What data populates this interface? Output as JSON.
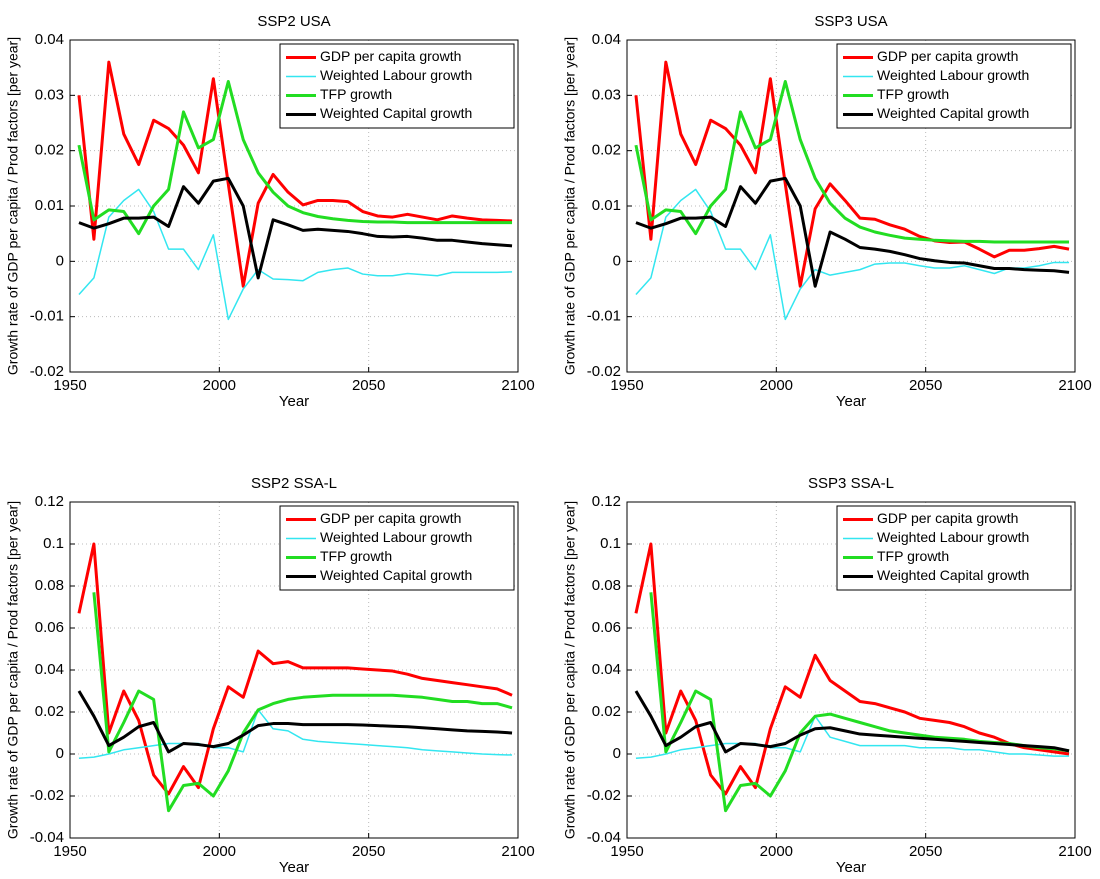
{
  "chart_data": [
    {
      "type": "line",
      "title": "SSP2  USA",
      "xlabel": "Year",
      "ylabel": "Growth rate of GDP per capita / Prod factors [per year]",
      "x": [
        1953,
        1958,
        1963,
        1968,
        1973,
        1978,
        1983,
        1988,
        1993,
        1998,
        2003,
        2008,
        2013,
        2018,
        2023,
        2028,
        2033,
        2038,
        2043,
        2048,
        2053,
        2058,
        2063,
        2068,
        2073,
        2078,
        2083,
        2088,
        2093,
        2098
      ],
      "xlim": [
        1950,
        2100
      ],
      "xticks": [
        1950,
        2000,
        2050,
        2100
      ],
      "ylim": [
        -0.02,
        0.04
      ],
      "yticks": [
        -0.02,
        -0.01,
        0,
        0.01,
        0.02,
        0.03,
        0.04
      ],
      "grid": true,
      "legend": "upper right",
      "series": [
        {
          "name": "GDP per capita growth",
          "color": "#ff0000",
          "values": [
            0.03,
            0.004,
            0.036,
            0.023,
            0.0175,
            0.0255,
            0.024,
            0.021,
            0.016,
            0.033,
            0.014,
            -0.0045,
            0.0105,
            0.0157,
            0.0125,
            0.0102,
            0.011,
            0.011,
            0.0108,
            0.009,
            0.0082,
            0.008,
            0.0085,
            0.008,
            0.0075,
            0.0082,
            0.0078,
            0.0075,
            0.0074,
            0.0073
          ]
        },
        {
          "name": "Weighted Labour growth",
          "color": "#33e6f0",
          "values": [
            -0.006,
            -0.003,
            0.008,
            0.011,
            0.013,
            0.009,
            0.0022,
            0.0022,
            -0.0015,
            0.0048,
            -0.0105,
            -0.005,
            -0.0015,
            -0.0032,
            -0.0033,
            -0.0035,
            -0.002,
            -0.0015,
            -0.0012,
            -0.0023,
            -0.0026,
            -0.0026,
            -0.0022,
            -0.0024,
            -0.0026,
            -0.002,
            -0.002,
            -0.002,
            -0.002,
            -0.0019
          ]
        },
        {
          "name": "TFP growth",
          "color": "#22dd22",
          "values": [
            0.021,
            0.0075,
            0.0093,
            0.009,
            0.005,
            0.01,
            0.013,
            0.027,
            0.0205,
            0.022,
            0.0325,
            0.022,
            0.016,
            0.0125,
            0.01,
            0.0088,
            0.0081,
            0.0077,
            0.0074,
            0.0072,
            0.0071,
            0.0071,
            0.007,
            0.007,
            0.007,
            0.007,
            0.007,
            0.007,
            0.007,
            0.007
          ]
        },
        {
          "name": "Weighted Capital growth",
          "color": "#000000",
          "values": [
            0.007,
            0.006,
            0.0068,
            0.0078,
            0.0078,
            0.008,
            0.0063,
            0.0135,
            0.0105,
            0.0145,
            0.015,
            0.01,
            -0.003,
            0.0075,
            0.0066,
            0.0056,
            0.0058,
            0.0056,
            0.0054,
            0.005,
            0.0045,
            0.0044,
            0.0045,
            0.0042,
            0.0038,
            0.0038,
            0.0035,
            0.0032,
            0.003,
            0.0028
          ]
        }
      ]
    },
    {
      "type": "line",
      "title": "SSP3  USA",
      "xlabel": "Year",
      "ylabel": "Growth rate of GDP per capita / Prod factors [per year]",
      "x": [
        1953,
        1958,
        1963,
        1968,
        1973,
        1978,
        1983,
        1988,
        1993,
        1998,
        2003,
        2008,
        2013,
        2018,
        2023,
        2028,
        2033,
        2038,
        2043,
        2048,
        2053,
        2058,
        2063,
        2068,
        2073,
        2078,
        2083,
        2088,
        2093,
        2098
      ],
      "xlim": [
        1950,
        2100
      ],
      "xticks": [
        1950,
        2000,
        2050,
        2100
      ],
      "ylim": [
        -0.02,
        0.04
      ],
      "yticks": [
        -0.02,
        -0.01,
        0,
        0.01,
        0.02,
        0.03,
        0.04
      ],
      "grid": true,
      "legend": "upper right",
      "series": [
        {
          "name": "GDP per capita growth",
          "color": "#ff0000",
          "values": [
            0.03,
            0.004,
            0.036,
            0.023,
            0.0175,
            0.0255,
            0.024,
            0.021,
            0.016,
            0.033,
            0.014,
            -0.0045,
            0.0095,
            0.014,
            0.011,
            0.0078,
            0.0076,
            0.0066,
            0.0058,
            0.0045,
            0.0037,
            0.0034,
            0.0035,
            0.0022,
            0.0008,
            0.002,
            0.002,
            0.0023,
            0.0027,
            0.0022
          ]
        },
        {
          "name": "Weighted Labour growth",
          "color": "#33e6f0",
          "values": [
            -0.006,
            -0.003,
            0.008,
            0.011,
            0.013,
            0.009,
            0.0022,
            0.0022,
            -0.0015,
            0.0048,
            -0.0105,
            -0.005,
            -0.0015,
            -0.0025,
            -0.002,
            -0.0015,
            -0.0005,
            -0.0003,
            -0.0003,
            -0.0008,
            -0.0012,
            -0.0012,
            -0.0008,
            -0.0015,
            -0.0022,
            -0.0012,
            -0.0012,
            -0.0008,
            -0.0002,
            -0.0002
          ]
        },
        {
          "name": "TFP growth",
          "color": "#22dd22",
          "values": [
            0.021,
            0.0075,
            0.0093,
            0.009,
            0.005,
            0.01,
            0.013,
            0.027,
            0.0205,
            0.022,
            0.0325,
            0.022,
            0.015,
            0.0105,
            0.0078,
            0.0062,
            0.0053,
            0.0047,
            0.0042,
            0.004,
            0.0038,
            0.0037,
            0.0036,
            0.0036,
            0.0035,
            0.0035,
            0.0035,
            0.0035,
            0.0035,
            0.0035
          ]
        },
        {
          "name": "Weighted Capital growth",
          "color": "#000000",
          "values": [
            0.007,
            0.006,
            0.0068,
            0.0078,
            0.0078,
            0.008,
            0.0063,
            0.0135,
            0.0105,
            0.0145,
            0.015,
            0.01,
            -0.0045,
            0.0053,
            0.004,
            0.0025,
            0.0022,
            0.0018,
            0.0012,
            0.0005,
            0.0001,
            -0.0002,
            -0.0003,
            -0.0008,
            -0.0013,
            -0.0013,
            -0.0015,
            -0.0016,
            -0.0017,
            -0.002
          ]
        }
      ]
    },
    {
      "type": "line",
      "title": "SSP2  SSA-L",
      "xlabel": "Year",
      "ylabel": "Growth rate of GDP per capita / Prod factors [per year]",
      "x": [
        1953,
        1958,
        1963,
        1968,
        1973,
        1978,
        1983,
        1988,
        1993,
        1998,
        2003,
        2008,
        2013,
        2018,
        2023,
        2028,
        2033,
        2038,
        2043,
        2048,
        2053,
        2058,
        2063,
        2068,
        2073,
        2078,
        2083,
        2088,
        2093,
        2098
      ],
      "xlim": [
        1950,
        2100
      ],
      "xticks": [
        1950,
        2000,
        2050,
        2100
      ],
      "ylim": [
        -0.04,
        0.12
      ],
      "yticks": [
        -0.04,
        -0.02,
        0,
        0.02,
        0.04,
        0.06,
        0.08,
        0.1,
        0.12
      ],
      "grid": true,
      "legend": "upper right",
      "series": [
        {
          "name": "GDP per capita growth",
          "color": "#ff0000",
          "values": [
            0.067,
            0.1,
            0.01,
            0.03,
            0.016,
            -0.01,
            -0.019,
            -0.006,
            -0.016,
            0.012,
            0.032,
            0.027,
            0.049,
            0.043,
            0.044,
            0.041,
            0.041,
            0.041,
            0.041,
            0.0405,
            0.04,
            0.0395,
            0.038,
            0.036,
            0.035,
            0.034,
            0.033,
            0.032,
            0.031,
            0.028
          ]
        },
        {
          "name": "Weighted Labour growth",
          "color": "#33e6f0",
          "values": [
            -0.002,
            -0.0015,
            0.0,
            0.002,
            0.003,
            0.004,
            0.005,
            0.005,
            0.005,
            0.003,
            0.003,
            0.001,
            0.021,
            0.012,
            0.011,
            0.007,
            0.006,
            0.0055,
            0.005,
            0.0045,
            0.004,
            0.0035,
            0.003,
            0.002,
            0.0015,
            0.001,
            0.0005,
            0.0,
            -0.0003,
            -0.0005
          ]
        },
        {
          "name": "TFP growth",
          "color": "#22dd22",
          "values": [
            null,
            0.077,
            0.001,
            0.015,
            0.03,
            0.026,
            -0.027,
            -0.015,
            -0.014,
            -0.02,
            -0.008,
            0.01,
            0.021,
            0.024,
            0.026,
            0.027,
            0.0275,
            0.028,
            0.028,
            0.028,
            0.028,
            0.028,
            0.0275,
            0.027,
            0.026,
            0.025,
            0.025,
            0.024,
            0.024,
            0.022
          ]
        },
        {
          "name": "Weighted Capital growth",
          "color": "#000000",
          "values": [
            0.03,
            0.018,
            0.004,
            0.008,
            0.013,
            0.015,
            0.001,
            0.005,
            0.0045,
            0.0035,
            0.005,
            0.009,
            0.0135,
            0.0145,
            0.0145,
            0.014,
            0.014,
            0.014,
            0.014,
            0.0138,
            0.0135,
            0.0132,
            0.013,
            0.0125,
            0.012,
            0.0115,
            0.011,
            0.0108,
            0.0105,
            0.01
          ]
        }
      ]
    },
    {
      "type": "line",
      "title": "SSP3  SSA-L",
      "xlabel": "Year",
      "ylabel": "Growth rate of GDP per capita / Prod factors [per year]",
      "x": [
        1953,
        1958,
        1963,
        1968,
        1973,
        1978,
        1983,
        1988,
        1993,
        1998,
        2003,
        2008,
        2013,
        2018,
        2023,
        2028,
        2033,
        2038,
        2043,
        2048,
        2053,
        2058,
        2063,
        2068,
        2073,
        2078,
        2083,
        2088,
        2093,
        2098
      ],
      "xlim": [
        1950,
        2100
      ],
      "xticks": [
        1950,
        2000,
        2050,
        2100
      ],
      "ylim": [
        -0.04,
        0.12
      ],
      "yticks": [
        -0.04,
        -0.02,
        0,
        0.02,
        0.04,
        0.06,
        0.08,
        0.1,
        0.12
      ],
      "grid": true,
      "legend": "upper right",
      "series": [
        {
          "name": "GDP per capita growth",
          "color": "#ff0000",
          "values": [
            0.067,
            0.1,
            0.01,
            0.03,
            0.016,
            -0.01,
            -0.019,
            -0.006,
            -0.016,
            0.012,
            0.032,
            0.027,
            0.047,
            0.035,
            0.03,
            0.025,
            0.024,
            0.022,
            0.02,
            0.017,
            0.016,
            0.015,
            0.013,
            0.01,
            0.008,
            0.005,
            0.003,
            0.002,
            0.001,
            0.0
          ]
        },
        {
          "name": "Weighted Labour growth",
          "color": "#33e6f0",
          "values": [
            -0.002,
            -0.0015,
            0.0,
            0.002,
            0.003,
            0.004,
            0.005,
            0.005,
            0.005,
            0.003,
            0.003,
            0.001,
            0.018,
            0.008,
            0.006,
            0.004,
            0.004,
            0.004,
            0.004,
            0.003,
            0.003,
            0.003,
            0.002,
            0.002,
            0.001,
            0.0,
            0.0,
            -0.0005,
            -0.001,
            -0.001
          ]
        },
        {
          "name": "TFP growth",
          "color": "#22dd22",
          "values": [
            null,
            0.077,
            0.001,
            0.015,
            0.03,
            0.026,
            -0.027,
            -0.015,
            -0.014,
            -0.02,
            -0.008,
            0.01,
            0.018,
            0.019,
            0.017,
            0.015,
            0.013,
            0.011,
            0.01,
            0.009,
            0.008,
            0.0075,
            0.007,
            0.006,
            0.0055,
            0.005,
            0.004,
            0.003,
            0.0025,
            0.0015
          ]
        },
        {
          "name": "Weighted Capital growth",
          "color": "#000000",
          "values": [
            0.03,
            0.018,
            0.004,
            0.008,
            0.013,
            0.015,
            0.001,
            0.005,
            0.0045,
            0.0035,
            0.005,
            0.009,
            0.012,
            0.0125,
            0.011,
            0.0095,
            0.009,
            0.0085,
            0.008,
            0.0075,
            0.007,
            0.0065,
            0.006,
            0.0055,
            0.005,
            0.0045,
            0.004,
            0.0035,
            0.003,
            0.0015
          ]
        }
      ]
    }
  ]
}
